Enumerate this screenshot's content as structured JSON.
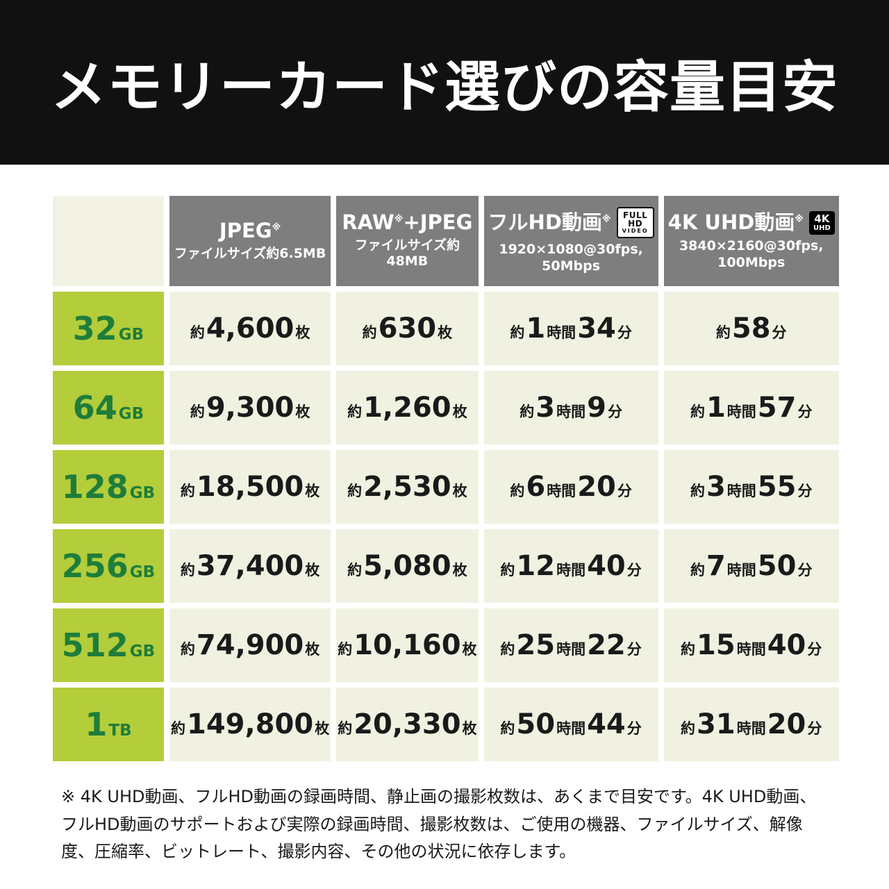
{
  "banner": {
    "title": "メモリーカード選びの容量目安"
  },
  "colors": {
    "banner_black": "#111111",
    "header_gray": "#7e7e7e",
    "row_header_green": "#b4cd3a",
    "row_header_text_green": "#1e7d3b",
    "data_cell_cream": "#f0f1e1",
    "text_black": "#1a1a1a",
    "white": "#ffffff"
  },
  "chart_data": {
    "type": "table",
    "title": "メモリーカード選びの容量目安",
    "columns": [
      {
        "id": "jpeg",
        "title_segments": [
          {
            "t": "JPEG"
          },
          {
            "t": "※",
            "sup": true
          }
        ],
        "subtitle_lines": [
          "ファイルサイズ約6.5MB"
        ],
        "badge": null
      },
      {
        "id": "raw-jpeg",
        "title_segments": [
          {
            "t": "RAW"
          },
          {
            "t": "※",
            "sup": true
          },
          {
            "t": "+JPEG"
          }
        ],
        "subtitle_lines": [
          "ファイルサイズ約48MB"
        ],
        "badge": null
      },
      {
        "id": "full-hd-video",
        "title_segments": [
          {
            "t": "フルHD動画"
          },
          {
            "t": "※",
            "sup": true
          }
        ],
        "subtitle_lines": [
          "1920×1080@30fps,",
          "50Mbps"
        ],
        "badge": {
          "style": "fullhd",
          "lines": [
            "FULL HD",
            "VIDEO"
          ]
        }
      },
      {
        "id": "4k-uhd-video",
        "title_segments": [
          {
            "t": "4K UHD動画"
          },
          {
            "t": "※",
            "sup": true
          }
        ],
        "subtitle_lines": [
          "3840×2160@30fps,",
          "100Mbps"
        ],
        "badge": {
          "style": "4k",
          "lines": [
            "4K",
            "UHD"
          ]
        }
      }
    ],
    "rows": [
      {
        "capacity": "32",
        "unit": "GB",
        "cells": [
          [
            [
              "約",
              "sm"
            ],
            [
              "4,600",
              "lg"
            ],
            [
              "枚",
              "sm"
            ]
          ],
          [
            [
              "約",
              "sm"
            ],
            [
              "630",
              "lg"
            ],
            [
              "枚",
              "sm"
            ]
          ],
          [
            [
              "約",
              "sm"
            ],
            [
              "1",
              "lg"
            ],
            [
              "時間",
              "sm"
            ],
            [
              "34",
              "lg"
            ],
            [
              "分",
              "sm"
            ]
          ],
          [
            [
              "約",
              "sm"
            ],
            [
              "58",
              "lg"
            ],
            [
              "分",
              "sm"
            ]
          ]
        ]
      },
      {
        "capacity": "64",
        "unit": "GB",
        "cells": [
          [
            [
              "約",
              "sm"
            ],
            [
              "9,300",
              "lg"
            ],
            [
              "枚",
              "sm"
            ]
          ],
          [
            [
              "約",
              "sm"
            ],
            [
              "1,260",
              "lg"
            ],
            [
              "枚",
              "sm"
            ]
          ],
          [
            [
              "約",
              "sm"
            ],
            [
              "3",
              "lg"
            ],
            [
              "時間",
              "sm"
            ],
            [
              "9",
              "lg"
            ],
            [
              "分",
              "sm"
            ]
          ],
          [
            [
              "約",
              "sm"
            ],
            [
              "1",
              "lg"
            ],
            [
              "時間",
              "sm"
            ],
            [
              "57",
              "lg"
            ],
            [
              "分",
              "sm"
            ]
          ]
        ]
      },
      {
        "capacity": "128",
        "unit": "GB",
        "cells": [
          [
            [
              "約",
              "sm"
            ],
            [
              "18,500",
              "lg"
            ],
            [
              "枚",
              "sm"
            ]
          ],
          [
            [
              "約",
              "sm"
            ],
            [
              "2,530",
              "lg"
            ],
            [
              "枚",
              "sm"
            ]
          ],
          [
            [
              "約",
              "sm"
            ],
            [
              "6",
              "lg"
            ],
            [
              "時間",
              "sm"
            ],
            [
              "20",
              "lg"
            ],
            [
              "分",
              "sm"
            ]
          ],
          [
            [
              "約",
              "sm"
            ],
            [
              "3",
              "lg"
            ],
            [
              "時間",
              "sm"
            ],
            [
              "55",
              "lg"
            ],
            [
              "分",
              "sm"
            ]
          ]
        ]
      },
      {
        "capacity": "256",
        "unit": "GB",
        "cells": [
          [
            [
              "約",
              "sm"
            ],
            [
              "37,400",
              "lg"
            ],
            [
              "枚",
              "sm"
            ]
          ],
          [
            [
              "約",
              "sm"
            ],
            [
              "5,080",
              "lg"
            ],
            [
              "枚",
              "sm"
            ]
          ],
          [
            [
              "約",
              "sm"
            ],
            [
              "12",
              "lg"
            ],
            [
              "時間",
              "sm"
            ],
            [
              "40",
              "lg"
            ],
            [
              "分",
              "sm"
            ]
          ],
          [
            [
              "約",
              "sm"
            ],
            [
              "7",
              "lg"
            ],
            [
              "時間",
              "sm"
            ],
            [
              "50",
              "lg"
            ],
            [
              "分",
              "sm"
            ]
          ]
        ]
      },
      {
        "capacity": "512",
        "unit": "GB",
        "cells": [
          [
            [
              "約",
              "sm"
            ],
            [
              "74,900",
              "lg"
            ],
            [
              "枚",
              "sm"
            ]
          ],
          [
            [
              "約",
              "sm"
            ],
            [
              "10,160",
              "lg"
            ],
            [
              "枚",
              "sm"
            ]
          ],
          [
            [
              "約",
              "sm"
            ],
            [
              "25",
              "lg"
            ],
            [
              "時間",
              "sm"
            ],
            [
              "22",
              "lg"
            ],
            [
              "分",
              "sm"
            ]
          ],
          [
            [
              "約",
              "sm"
            ],
            [
              "15",
              "lg"
            ],
            [
              "時間",
              "sm"
            ],
            [
              "40",
              "lg"
            ],
            [
              "分",
              "sm"
            ]
          ]
        ]
      },
      {
        "capacity": "1",
        "unit": "TB",
        "cells": [
          [
            [
              "約",
              "sm"
            ],
            [
              "149,800",
              "lg"
            ],
            [
              "枚",
              "sm"
            ]
          ],
          [
            [
              "約",
              "sm"
            ],
            [
              "20,330",
              "lg"
            ],
            [
              "枚",
              "sm"
            ]
          ],
          [
            [
              "約",
              "sm"
            ],
            [
              "50",
              "lg"
            ],
            [
              "時間",
              "sm"
            ],
            [
              "44",
              "lg"
            ],
            [
              "分",
              "sm"
            ]
          ],
          [
            [
              "約",
              "sm"
            ],
            [
              "31",
              "lg"
            ],
            [
              "時間",
              "sm"
            ],
            [
              "20",
              "lg"
            ],
            [
              "分",
              "sm"
            ]
          ]
        ]
      }
    ]
  },
  "footnote": {
    "text": "※ 4K UHD動画、フルHD動画の録画時間、静止画の撮影枚数は、あくまで目安です。4K UHD動画、フルHD動画のサポートおよび実際の録画時間、撮影枚数は、ご使用の機器、ファイルサイズ、解像度、圧縮率、ビットレート、撮影内容、その他の状況に依存します。"
  }
}
